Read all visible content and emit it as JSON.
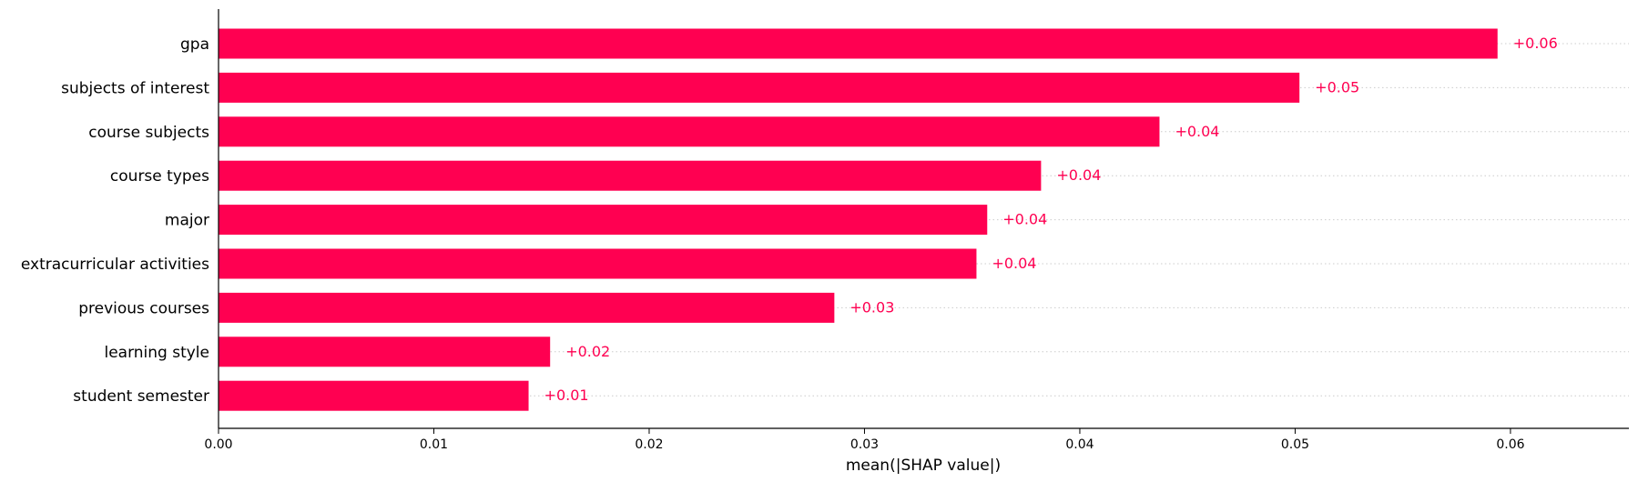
{
  "chart_data": {
    "type": "bar",
    "orientation": "horizontal",
    "categories": [
      "gpa",
      "subjects of interest",
      "course subjects",
      "course types",
      "major",
      "extracurricular activities",
      "previous courses",
      "learning style",
      "student semester"
    ],
    "values": [
      0.0594,
      0.0502,
      0.0437,
      0.0382,
      0.0357,
      0.0352,
      0.0286,
      0.0154,
      0.0144
    ],
    "value_labels": [
      "+0.06",
      "+0.05",
      "+0.04",
      "+0.04",
      "+0.04",
      "+0.04",
      "+0.03",
      "+0.02",
      "+0.01"
    ],
    "xlabel": "mean(|SHAP value|)",
    "xlim": [
      0,
      0.0655
    ],
    "xticks": [
      0,
      0.01,
      0.02,
      0.03,
      0.04,
      0.05,
      0.06
    ],
    "xtick_labels": [
      "0.00",
      "0.01",
      "0.02",
      "0.03",
      "0.04",
      "0.05",
      "0.06"
    ],
    "grid": "dotted row guides",
    "bar_color": "#ff0051",
    "label_color": "#ff0051"
  }
}
